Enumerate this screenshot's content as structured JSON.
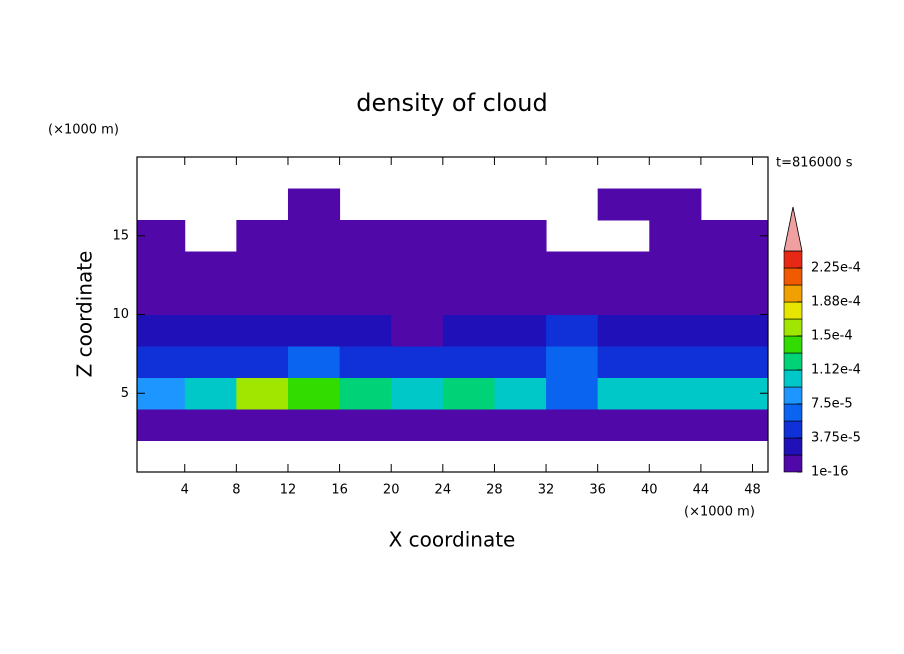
{
  "chart_data": {
    "type": "contour",
    "title": "density of cloud",
    "x_label": "X coordinate",
    "y_label": "Z coordinate",
    "x_unit": "(×1000 m)",
    "y_unit": "(×1000 m)",
    "annotation": "t=816000 s",
    "xlim": [
      0.3,
      49.2
    ],
    "ylim": [
      0,
      20
    ],
    "xticks": [
      4,
      8,
      12,
      16,
      20,
      24,
      28,
      32,
      36,
      40,
      44,
      48
    ],
    "yticks": [
      5,
      10,
      15
    ],
    "x": [
      0,
      4,
      8,
      12,
      16,
      20,
      24,
      28,
      32,
      36,
      40,
      44,
      48,
      52
    ],
    "y": [
      0,
      2,
      4,
      6,
      8,
      10,
      12,
      14,
      16,
      18,
      20
    ],
    "z": [
      [
        null,
        null,
        null,
        null,
        null,
        null,
        null,
        null,
        null,
        null,
        null,
        null,
        null
      ],
      [
        1.5e-05,
        1.2e-05,
        1.5e-05,
        1.2e-05,
        1.5e-05,
        1.2e-05,
        1.2e-05,
        1.5e-05,
        1.8e-05,
        1.2e-05,
        1.5e-05,
        1.5e-05,
        1.5e-05
      ],
      [
        8e-05,
        0.0001,
        0.00016,
        0.00014,
        0.00012,
        0.00011,
        0.00012,
        0.0001,
        6e-05,
        0.0001,
        0.00011,
        0.00011,
        0.0001
      ],
      [
        4e-05,
        4.5e-05,
        5e-05,
        6e-05,
        5e-05,
        4.5e-05,
        4e-05,
        5e-05,
        6e-05,
        4e-05,
        4e-05,
        4e-05,
        4e-05
      ],
      [
        2e-05,
        2.5e-05,
        2e-05,
        2e-05,
        2e-05,
        1.5e-05,
        2e-05,
        2.5e-05,
        5e-05,
        3e-05,
        2e-05,
        2e-05,
        2e-05
      ],
      [
        5e-06,
        5e-06,
        5e-06,
        5e-06,
        5e-06,
        5e-06,
        5e-06,
        8e-06,
        1e-05,
        5e-06,
        5e-06,
        5e-06,
        5e-06
      ],
      [
        1e-06,
        1e-06,
        1e-06,
        1e-06,
        1e-06,
        1e-06,
        1e-06,
        1e-06,
        1e-06,
        1e-06,
        1e-06,
        1e-06,
        1e-06
      ],
      [
        1e-06,
        null,
        1e-06,
        1e-06,
        1e-06,
        1e-06,
        1e-06,
        1e-06,
        null,
        null,
        1e-06,
        1e-06,
        1e-06
      ],
      [
        null,
        null,
        null,
        1e-06,
        null,
        null,
        null,
        null,
        null,
        1e-06,
        1e-06,
        null,
        null
      ],
      [
        null,
        null,
        null,
        null,
        null,
        null,
        null,
        null,
        null,
        null,
        null,
        null,
        null
      ]
    ],
    "levels": [
      1e-16,
      1.875e-05,
      3.75e-05,
      5.625e-05,
      7.5e-05,
      9.375e-05,
      0.0001125,
      0.00013125,
      0.00015,
      0.00016875,
      0.0001875,
      0.00020625,
      0.000225,
      0.00024375
    ],
    "colors": [
      "#5008a8",
      "#2010b8",
      "#1030d8",
      "#0a64f0",
      "#1e96ff",
      "#00c8c8",
      "#00d278",
      "#32dc00",
      "#a0e600",
      "#e6e600",
      "#f0a000",
      "#f05a00",
      "#e62814"
    ],
    "extend_color": "#f0a0a0",
    "colorbar_ticks": [
      {
        "value": 1e-16,
        "label": "1e-16"
      },
      {
        "value": 3.75e-05,
        "label": "3.75e-5"
      },
      {
        "value": 7.5e-05,
        "label": "7.5e-5"
      },
      {
        "value": 0.0001125,
        "label": "1.12e-4"
      },
      {
        "value": 0.00015,
        "label": "1.5e-4"
      },
      {
        "value": 0.0001875,
        "label": "1.88e-4"
      },
      {
        "value": 0.000225,
        "label": "2.25e-4"
      }
    ]
  }
}
